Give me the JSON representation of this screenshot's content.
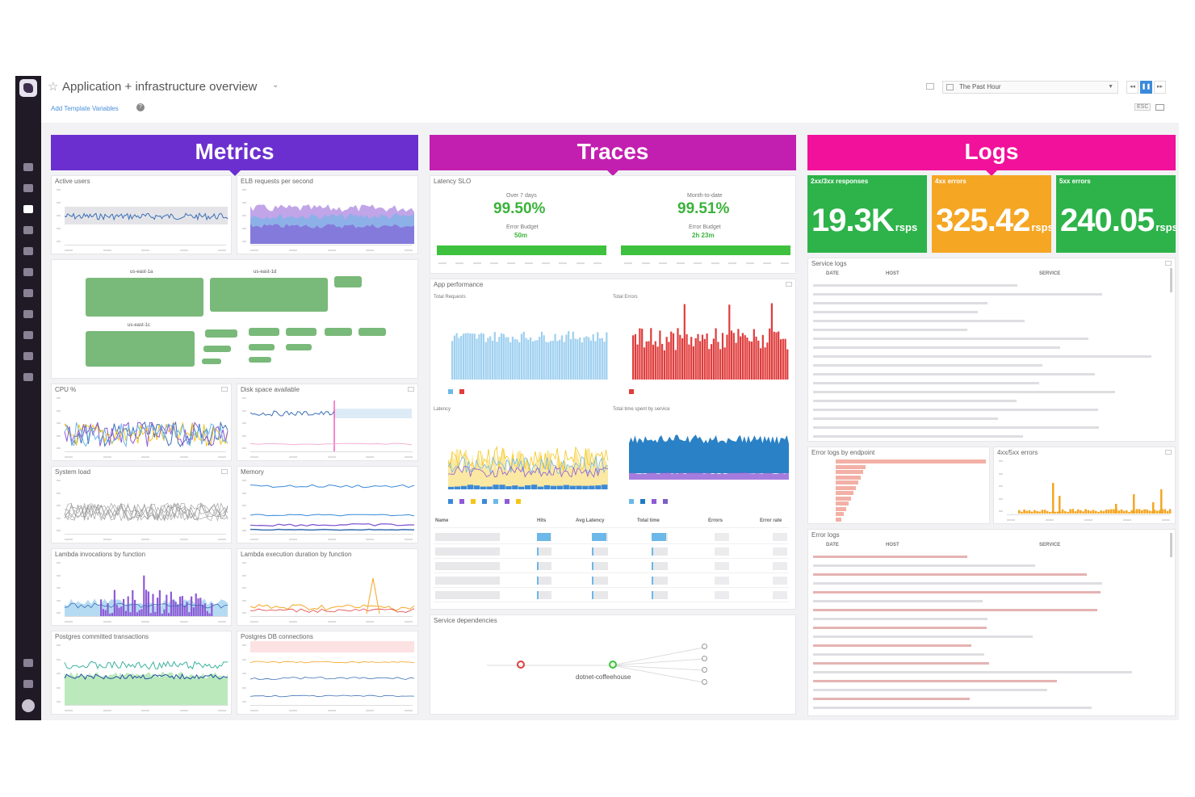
{
  "header": {
    "title": "Application + infrastructure overview",
    "template_link": "Add Template Variables",
    "help": "?",
    "timeframe": "The Past Hour",
    "kbd": "ESC"
  },
  "columns": {
    "metrics": {
      "title": "Metrics",
      "color": "#6b2fcf"
    },
    "traces": {
      "title": "Traces",
      "color": "#c21fb0"
    },
    "logs": {
      "title": "Logs",
      "color": "#f2119a"
    }
  },
  "metrics_widgets": {
    "active_users": "Active users",
    "elb": "ELB requests per second",
    "hosts": {
      "a": "us-east-1a",
      "d": "us-east-1d",
      "c": "us-east-1c"
    },
    "cpu": "CPU %",
    "disk": "Disk space available",
    "system_load": "System load",
    "memory": "Memory",
    "lambda_inv": "Lambda invocations by function",
    "lambda_dur": "Lambda execution duration by function",
    "pg_tx": "Postgres committed transactions",
    "pg_conn": "Postgres DB connections"
  },
  "traces_widgets": {
    "slo_title": "Latency SLO",
    "slo": [
      {
        "period": "Over 7 days",
        "value": "99.50%",
        "eb_label": "Error Budget",
        "eb_value": "50m"
      },
      {
        "period": "Month-to-date",
        "value": "99.51%",
        "eb_label": "Error Budget",
        "eb_value": "2h 23m"
      }
    ],
    "app_perf": "App performance",
    "total_requests": "Total Requests",
    "total_errors": "Total Errors",
    "latency": "Latency",
    "time_spent": "Total time spent by service",
    "table": {
      "headers": [
        "Name",
        "Hits",
        "Avg Latency",
        "Total time",
        "Errors",
        "Error rate"
      ],
      "rows": [
        {
          "hits": 0.95,
          "lat": 0.9,
          "tot": 0.9
        },
        {
          "hits": 0.1,
          "lat": 0.1,
          "tot": 0.1
        },
        {
          "hits": 0.1,
          "lat": 0.1,
          "tot": 0.1
        },
        {
          "hits": 0.1,
          "lat": 0.1,
          "tot": 0.1
        },
        {
          "hits": 0.1,
          "lat": 0.1,
          "tot": 0.1
        }
      ]
    },
    "deps": "Service dependencies",
    "dep_main": "dotnet-coffeehouse"
  },
  "logs_widgets": {
    "stats": [
      {
        "title": "2xx/3xx responses",
        "value": "19.3K",
        "unit": "rsps",
        "color": "#2db34a"
      },
      {
        "title": "4xx errors",
        "value": "325.42",
        "unit": "rsps",
        "color": "#f5a623"
      },
      {
        "title": "5xx errors",
        "value": "240.05",
        "unit": "rsps",
        "color": "#2db34a"
      }
    ],
    "service_logs": "Service logs",
    "log_headers": [
      "DATE",
      "HOST",
      "SERVICE"
    ],
    "error_by_endpoint": "Error logs by endpoint",
    "errors_4xx5xx": "4xx/5xx errors",
    "error_logs": "Error logs"
  },
  "colors": {
    "green": "#3ec13e",
    "red": "#e03c3c",
    "blue": "#6cb8e8",
    "purple": "#7b4fd0",
    "orange": "#f5a623"
  },
  "icons": [
    "star-icon",
    "chevron-down-icon",
    "help-icon",
    "calendar-icon",
    "pause-icon",
    "tv-icon"
  ]
}
